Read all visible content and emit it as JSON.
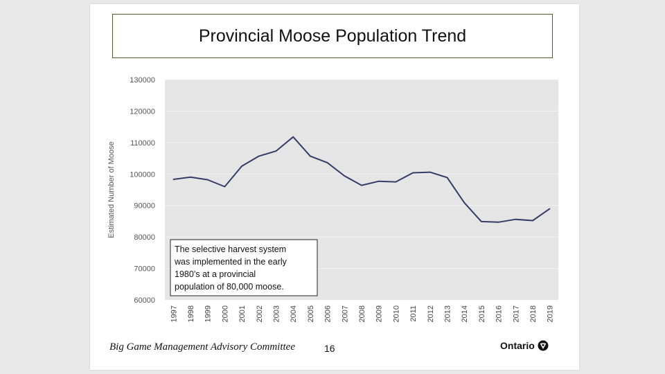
{
  "slide": {
    "footer_text": "Big Game Management Advisory Committee",
    "page_number": "16",
    "logo_text": "Ontario"
  },
  "chart_data": {
    "type": "line",
    "title": "Provincial Moose Population Trend",
    "xlabel": "",
    "ylabel": "Estimated Number of Moose",
    "ylim": [
      60000,
      130000
    ],
    "yticks": [
      60000,
      70000,
      80000,
      90000,
      100000,
      110000,
      120000,
      130000
    ],
    "grid": true,
    "x": [
      "1997",
      "1998",
      "1999",
      "2000",
      "2001",
      "2002",
      "2003",
      "2004",
      "2005",
      "2006",
      "2007",
      "2008",
      "2009",
      "2010",
      "2011",
      "2012",
      "2013",
      "2014",
      "2015",
      "2016",
      "2017",
      "2018",
      "2019"
    ],
    "series": [
      {
        "values": [
          98300,
          99000,
          98200,
          96000,
          102500,
          105700,
          107300,
          111800,
          105700,
          103600,
          99400,
          96400,
          97700,
          97500,
          100400,
          100600,
          98900,
          90900,
          84900,
          84700,
          85600,
          85200,
          89000
        ]
      }
    ],
    "line_color": "#323c66",
    "plot_background": "#e5e5e5",
    "annotation": "The selective harvest system was implemented in the early 1980’s at a provincial population of 80,000 moose."
  }
}
